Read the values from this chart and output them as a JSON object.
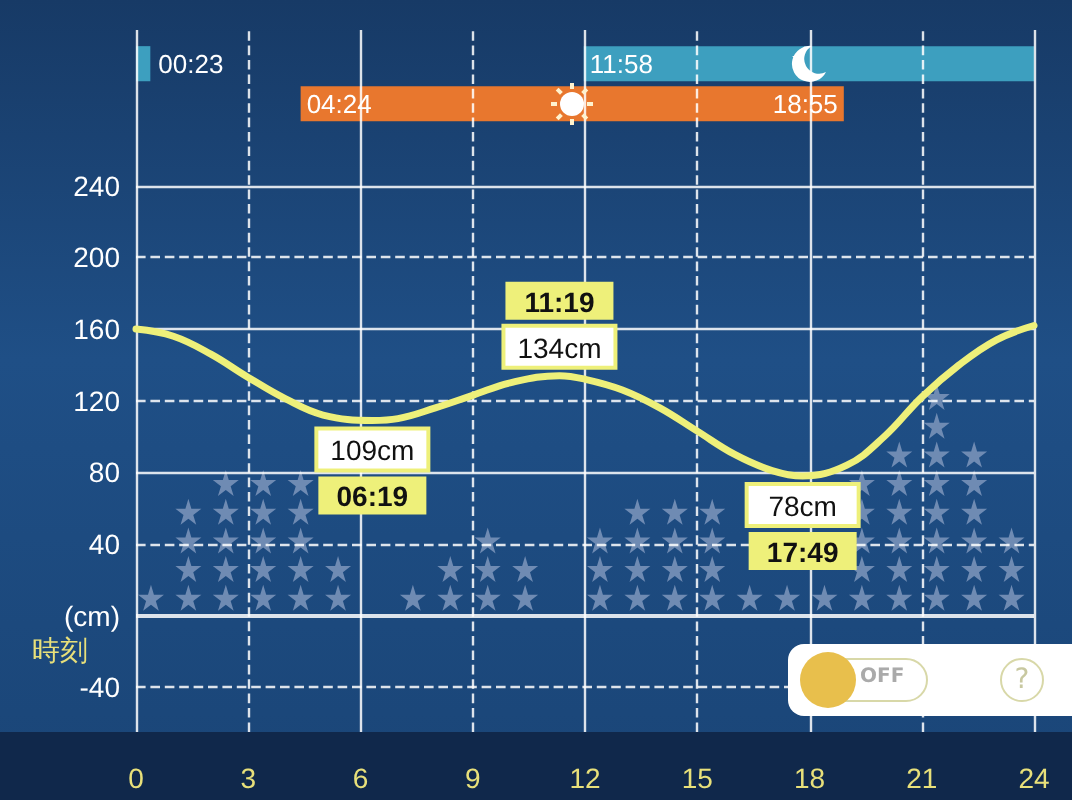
{
  "chart_data": {
    "type": "line",
    "xlabel": "時刻",
    "xlim": [
      0,
      24
    ],
    "xticks": [
      0,
      3,
      6,
      9,
      12,
      15,
      18,
      21,
      24
    ],
    "ylim": [
      -65,
      327
    ],
    "yticks": [
      -40,
      {
        "value": 0,
        "label": "(cm)"
      },
      40,
      80,
      120,
      160,
      200,
      240
    ],
    "grid": true,
    "marker": "none",
    "line_style": "solid",
    "series": [
      {
        "type": "scatter",
        "marker": "star",
        "color": "#6f8bb3",
        "x": [
          0.4,
          1.4,
          1.4,
          1.4,
          1.4,
          2.4,
          2.4,
          2.4,
          2.4,
          2.4,
          3.4,
          3.4,
          3.4,
          3.4,
          3.4,
          4.4,
          4.4,
          4.4,
          4.4,
          4.4,
          5.4,
          5.4,
          7.4,
          8.4,
          8.4,
          9.4,
          9.4,
          9.4,
          10.4,
          10.4,
          12.4,
          12.4,
          12.4,
          13.4,
          13.4,
          13.4,
          13.4,
          14.4,
          14.4,
          14.4,
          14.4,
          15.4,
          15.4,
          15.4,
          15.4,
          16.4,
          17.4,
          18.4,
          19.4,
          19.4,
          19.4,
          19.4,
          19.4,
          20.4,
          20.4,
          20.4,
          20.4,
          20.4,
          20.4,
          21.4,
          21.4,
          21.4,
          21.4,
          21.4,
          21.4,
          21.4,
          21.4,
          22.4,
          22.4,
          22.4,
          22.4,
          22.4,
          22.4,
          23.4,
          23.4,
          23.4
        ],
        "values": [
          10,
          10,
          26,
          42,
          58,
          10,
          26,
          42,
          58,
          74,
          10,
          26,
          42,
          58,
          74,
          10,
          26,
          42,
          58,
          74,
          10,
          26,
          10,
          10,
          26,
          10,
          26,
          42,
          10,
          26,
          10,
          26,
          42,
          10,
          26,
          42,
          58,
          10,
          26,
          42,
          58,
          10,
          26,
          42,
          58,
          10,
          10,
          10,
          10,
          26,
          42,
          58,
          74,
          10,
          26,
          42,
          58,
          74,
          90,
          10,
          26,
          42,
          58,
          74,
          90,
          106,
          122,
          10,
          26,
          42,
          58,
          74,
          90,
          10,
          26,
          42
        ]
      },
      {
        "color": "#eef07a",
        "x": [
          0,
          1,
          2,
          3,
          4,
          5,
          6.317,
          7,
          8,
          9,
          10,
          11.317,
          12,
          13,
          14,
          15,
          16,
          17,
          17.817,
          19,
          20,
          21,
          22,
          23,
          24
        ],
        "values": [
          160,
          156,
          146,
          133,
          121,
          112,
          109,
          110,
          116,
          123,
          130,
          134,
          132,
          126,
          116,
          103,
          90,
          81,
          78,
          84,
          100,
          122,
          140,
          154,
          162
        ],
        "value_labels": [
          null,
          null,
          null,
          null,
          null,
          null,
          "109cm",
          null,
          null,
          null,
          null,
          "134cm",
          null,
          null,
          null,
          null,
          null,
          null,
          "78cm",
          null,
          null,
          null,
          null,
          null,
          null
        ]
      }
    ],
    "bands": [
      {
        "axis": "x",
        "from": 0,
        "to": 0.383,
        "label": "00:23",
        "color": "#3d9fbf"
      },
      {
        "axis": "x",
        "from": 11.967,
        "to": 24,
        "label": "11:58",
        "color": "#3d9fbf"
      },
      {
        "axis": "x",
        "from": 4.4,
        "to": 18.917,
        "label": "04:24",
        "color": "#e8772e"
      }
    ],
    "annotations": [
      {
        "text": "06:19",
        "x": 6.317,
        "y": 109
      },
      {
        "text": "11:19",
        "x": 11.317,
        "y": 134
      },
      {
        "text": "17:49",
        "x": 17.817,
        "y": 78
      },
      {
        "text": "18:55",
        "x": 18.917
      },
      "OFF",
      "?"
    ]
  }
}
